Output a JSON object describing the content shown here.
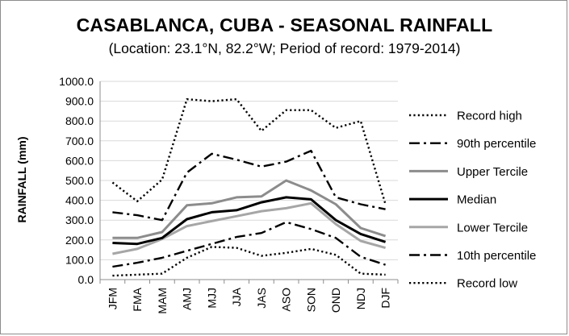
{
  "chart_data": {
    "type": "line",
    "title": "CASABLANCA, CUBA - SEASONAL RAINFALL",
    "subtitle": "(Location: 23.1°N, 82.2°W; Period of record: 1979-2014)",
    "ylabel": "RAINFALL (mm)",
    "xlabel": "",
    "ylim": [
      0,
      1000
    ],
    "yticks": [
      "0.0",
      "100.0",
      "200.0",
      "300.0",
      "400.0",
      "500.0",
      "600.0",
      "700.0",
      "800.0",
      "900.0",
      "1000.0"
    ],
    "grid": "horizontal",
    "legend_position": "right",
    "categories": [
      "JFM",
      "FMA",
      "MAM",
      "AMJ",
      "MJJ",
      "JJA",
      "JAS",
      "ASO",
      "SON",
      "OND",
      "NDJ",
      "DJF"
    ],
    "series": [
      {
        "name": "Record high",
        "style": "dotted",
        "color": "#000000",
        "values": [
          490,
          395,
          505,
          910,
          900,
          910,
          750,
          855,
          855,
          765,
          800,
          380
        ]
      },
      {
        "name": "90th percentile",
        "style": "dashdot",
        "color": "#000000",
        "values": [
          340,
          325,
          300,
          540,
          635,
          605,
          570,
          595,
          650,
          415,
          380,
          355
        ]
      },
      {
        "name": "Upper Tercile",
        "style": "solid",
        "color": "#8c8c8c",
        "values": [
          210,
          210,
          240,
          375,
          385,
          415,
          420,
          500,
          450,
          380,
          260,
          220
        ]
      },
      {
        "name": "Median",
        "style": "solid",
        "color": "#000000",
        "values": [
          185,
          180,
          210,
          305,
          340,
          350,
          390,
          415,
          405,
          300,
          230,
          190
        ]
      },
      {
        "name": "Lower Tercile",
        "style": "solid",
        "color": "#a6a6a6",
        "values": [
          130,
          155,
          205,
          270,
          295,
          320,
          345,
          360,
          385,
          280,
          195,
          160
        ]
      },
      {
        "name": "10th percentile",
        "style": "dashdot",
        "color": "#000000",
        "values": [
          65,
          85,
          110,
          145,
          180,
          215,
          235,
          290,
          255,
          210,
          115,
          75
        ]
      },
      {
        "name": "Record low",
        "style": "dotted",
        "color": "#000000",
        "values": [
          20,
          25,
          30,
          110,
          165,
          160,
          120,
          135,
          155,
          125,
          30,
          25
        ]
      }
    ]
  }
}
